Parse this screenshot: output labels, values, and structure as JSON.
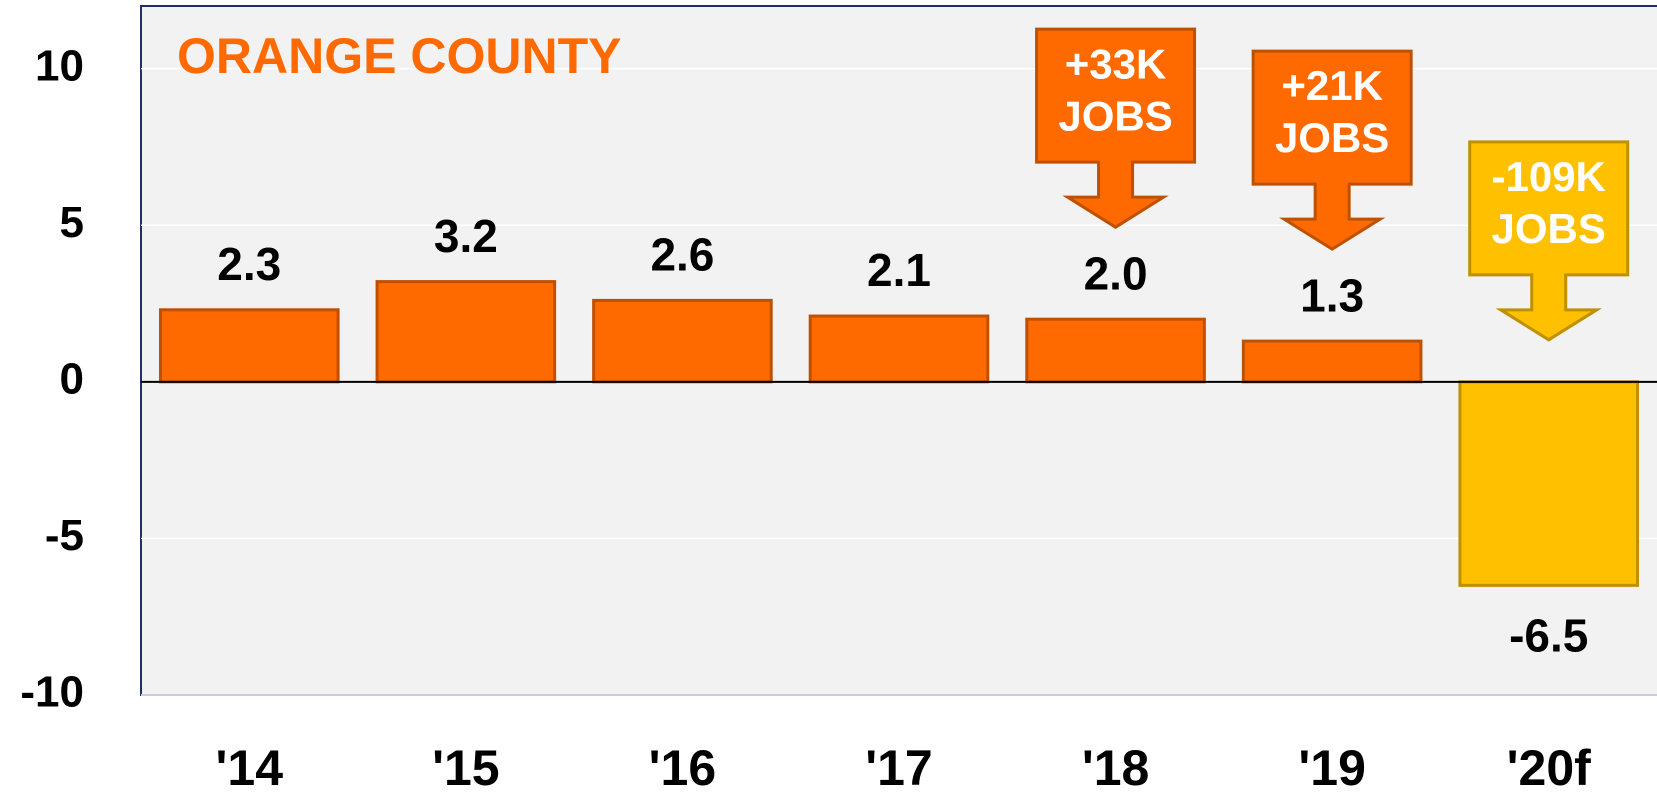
{
  "chart_data": {
    "type": "bar",
    "title": "ORANGE COUNTY",
    "title_color": "#ff6a00",
    "categories": [
      "'14",
      "'15",
      "'16",
      "'17",
      "'18",
      "'19",
      "'20f"
    ],
    "values": [
      2.3,
      3.2,
      2.6,
      2.1,
      2.0,
      1.3,
      -6.5
    ],
    "value_labels": [
      "2.3",
      "3.2",
      "2.6",
      "2.1",
      "2.0",
      "1.3",
      "-6.5"
    ],
    "colors": [
      "#ff6a00",
      "#ff6a00",
      "#ff6a00",
      "#ff6a00",
      "#ff6a00",
      "#ff6a00",
      "#ffc000"
    ],
    "ylim": [
      -10,
      12
    ],
    "yticks": [
      -10,
      -5,
      0,
      5,
      10
    ],
    "grid": true,
    "annotations": [
      {
        "category": "'18",
        "text": [
          "+33K",
          "JOBS"
        ],
        "color": "#ff6a00"
      },
      {
        "category": "'19",
        "text": [
          "+21K",
          "JOBS"
        ],
        "color": "#ff6a00"
      },
      {
        "category": "'20f",
        "text": [
          "-109K",
          "JOBS"
        ],
        "color": "#ffc000"
      }
    ]
  }
}
